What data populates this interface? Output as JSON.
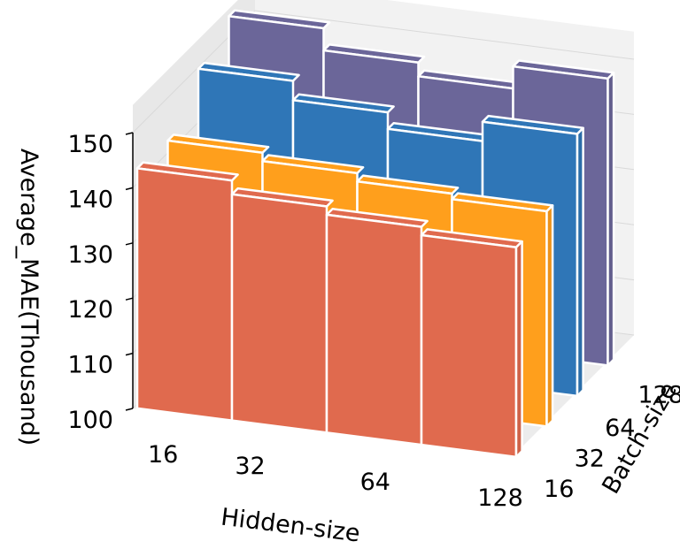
{
  "chart_data": {
    "type": "3d-bar",
    "title": "",
    "xlabel": "Hidden-size",
    "ylabel": "Batch-size",
    "zlabel": "Average_MAE(Thousand)",
    "x_categories": [
      "16",
      "32",
      "64",
      "128"
    ],
    "y_categories": [
      "16",
      "32",
      "64",
      "128"
    ],
    "zlim": [
      100,
      150
    ],
    "z_ticks": [
      "100",
      "110",
      "120",
      "130",
      "140",
      "150"
    ],
    "grid": true,
    "series": [
      {
        "batch": "16",
        "color": "#E06A4E",
        "values": [
          143.5,
          141.0,
          139.5,
          138.0
        ]
      },
      {
        "batch": "32",
        "color": "#FF9F1C",
        "values": [
          143.0,
          141.5,
          140.0,
          139.0
        ]
      },
      {
        "batch": "64",
        "color": "#2F76B7",
        "values": [
          150.5,
          147.0,
          144.0,
          147.5
        ]
      },
      {
        "batch": "128",
        "color": "#6B6699",
        "values": [
          154.5,
          150.5,
          148.0,
          152.0
        ]
      }
    ]
  }
}
